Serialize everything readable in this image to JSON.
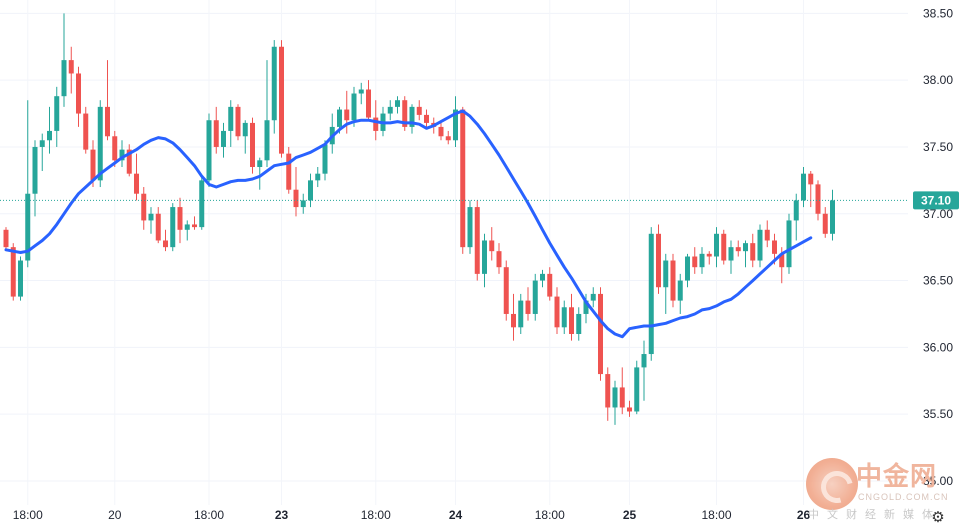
{
  "chart_data": {
    "type": "candlestick",
    "title": "",
    "ylim": [
      34.82,
      38.6
    ],
    "yticks": [
      "35.00",
      "35.50",
      "36.00",
      "36.50",
      "37.00",
      "37.50",
      "38.00",
      "38.50"
    ],
    "current_price": "37.10",
    "current_value": 37.1,
    "x_labels": [
      {
        "text": "18:00",
        "i": 3,
        "bold": false
      },
      {
        "text": "20",
        "i": 15,
        "bold": false
      },
      {
        "text": "18:00",
        "i": 28,
        "bold": false
      },
      {
        "text": "23",
        "i": 38,
        "bold": true
      },
      {
        "text": "18:00",
        "i": 51,
        "bold": false
      },
      {
        "text": "24",
        "i": 62,
        "bold": true
      },
      {
        "text": "18:00",
        "i": 75,
        "bold": false
      },
      {
        "text": "25",
        "i": 86,
        "bold": true
      },
      {
        "text": "18:00",
        "i": 98,
        "bold": false
      },
      {
        "text": "26",
        "i": 110,
        "bold": true
      }
    ],
    "bull_color": "#26a69a",
    "bear_color": "#ef5350",
    "ma_color": "#2962ff",
    "candles": [
      [
        36.88,
        36.9,
        36.72,
        36.75
      ],
      [
        36.75,
        36.78,
        36.35,
        36.38
      ],
      [
        36.38,
        36.68,
        36.35,
        36.65
      ],
      [
        36.65,
        37.85,
        36.6,
        37.15
      ],
      [
        37.15,
        37.55,
        36.98,
        37.5
      ],
      [
        37.5,
        37.6,
        37.32,
        37.55
      ],
      [
        37.55,
        37.8,
        37.45,
        37.62
      ],
      [
        37.62,
        37.95,
        37.5,
        37.88
      ],
      [
        37.88,
        38.5,
        37.8,
        38.15
      ],
      [
        38.15,
        38.25,
        37.9,
        38.05
      ],
      [
        38.05,
        38.1,
        37.65,
        37.75
      ],
      [
        37.75,
        37.8,
        37.45,
        37.48
      ],
      [
        37.48,
        37.55,
        37.2,
        37.25
      ],
      [
        37.25,
        37.85,
        37.2,
        37.8
      ],
      [
        37.8,
        38.15,
        37.55,
        37.58
      ],
      [
        37.58,
        37.62,
        37.35,
        37.4
      ],
      [
        37.4,
        37.55,
        37.35,
        37.48
      ],
      [
        37.48,
        37.52,
        37.28,
        37.3
      ],
      [
        37.3,
        37.45,
        37.1,
        37.15
      ],
      [
        37.15,
        37.2,
        36.88,
        36.95
      ],
      [
        36.95,
        37.05,
        36.85,
        37.0
      ],
      [
        37.0,
        37.05,
        36.78,
        36.8
      ],
      [
        36.8,
        36.88,
        36.72,
        36.75
      ],
      [
        36.75,
        37.08,
        36.72,
        37.05
      ],
      [
        37.05,
        37.12,
        36.78,
        36.88
      ],
      [
        36.88,
        36.95,
        36.8,
        36.92
      ],
      [
        36.92,
        36.98,
        36.88,
        36.9
      ],
      [
        36.9,
        37.28,
        36.88,
        37.25
      ],
      [
        37.25,
        37.75,
        37.2,
        37.7
      ],
      [
        37.7,
        37.8,
        37.45,
        37.5
      ],
      [
        37.5,
        37.68,
        37.42,
        37.62
      ],
      [
        37.62,
        37.85,
        37.5,
        37.8
      ],
      [
        37.8,
        37.82,
        37.55,
        37.58
      ],
      [
        37.58,
        37.7,
        37.45,
        37.68
      ],
      [
        37.68,
        37.72,
        37.3,
        37.35
      ],
      [
        37.35,
        37.42,
        37.18,
        37.4
      ],
      [
        37.4,
        38.15,
        37.35,
        37.7
      ],
      [
        37.7,
        38.3,
        37.6,
        38.25
      ],
      [
        38.25,
        38.3,
        37.42,
        37.45
      ],
      [
        37.45,
        37.5,
        37.15,
        37.18
      ],
      [
        37.18,
        37.35,
        36.98,
        37.05
      ],
      [
        37.05,
        37.15,
        37.0,
        37.1
      ],
      [
        37.1,
        37.3,
        37.05,
        37.25
      ],
      [
        37.25,
        37.35,
        37.2,
        37.3
      ],
      [
        37.3,
        37.55,
        37.25,
        37.52
      ],
      [
        37.52,
        37.75,
        37.45,
        37.65
      ],
      [
        37.65,
        37.8,
        37.6,
        37.78
      ],
      [
        37.78,
        37.92,
        37.6,
        37.7
      ],
      [
        37.7,
        37.95,
        37.65,
        37.9
      ],
      [
        37.9,
        37.98,
        37.82,
        37.93
      ],
      [
        37.93,
        38.0,
        37.7,
        37.72
      ],
      [
        37.72,
        37.85,
        37.55,
        37.62
      ],
      [
        37.62,
        37.8,
        37.58,
        37.75
      ],
      [
        37.75,
        37.85,
        37.7,
        37.8
      ],
      [
        37.8,
        37.88,
        37.75,
        37.85
      ],
      [
        37.85,
        37.88,
        37.62,
        37.65
      ],
      [
        37.65,
        37.82,
        37.6,
        37.8
      ],
      [
        37.8,
        37.85,
        37.7,
        37.74
      ],
      [
        37.74,
        37.78,
        37.65,
        37.68
      ],
      [
        37.68,
        37.72,
        37.6,
        37.65
      ],
      [
        37.65,
        37.7,
        37.55,
        37.58
      ],
      [
        37.58,
        37.62,
        37.52,
        37.55
      ],
      [
        37.55,
        37.88,
        37.5,
        37.78
      ],
      [
        37.78,
        37.8,
        36.7,
        36.75
      ],
      [
        36.75,
        37.1,
        36.7,
        37.05
      ],
      [
        37.05,
        37.1,
        36.5,
        36.55
      ],
      [
        36.55,
        36.85,
        36.45,
        36.8
      ],
      [
        36.8,
        36.9,
        36.65,
        36.72
      ],
      [
        36.72,
        36.78,
        36.55,
        36.6
      ],
      [
        36.6,
        36.65,
        36.2,
        36.25
      ],
      [
        36.25,
        36.4,
        36.05,
        36.15
      ],
      [
        36.15,
        36.4,
        36.1,
        36.35
      ],
      [
        36.35,
        36.45,
        36.2,
        36.25
      ],
      [
        36.25,
        36.55,
        36.2,
        36.5
      ],
      [
        36.5,
        36.58,
        36.45,
        36.55
      ],
      [
        36.55,
        36.6,
        36.35,
        36.38
      ],
      [
        36.38,
        36.45,
        36.1,
        36.15
      ],
      [
        36.15,
        36.35,
        36.1,
        36.3
      ],
      [
        36.3,
        36.4,
        36.05,
        36.1
      ],
      [
        36.1,
        36.3,
        36.05,
        36.25
      ],
      [
        36.25,
        36.4,
        36.18,
        36.35
      ],
      [
        36.35,
        36.45,
        36.3,
        36.4
      ],
      [
        36.4,
        36.45,
        35.75,
        35.8
      ],
      [
        35.8,
        35.85,
        35.45,
        35.55
      ],
      [
        35.55,
        35.75,
        35.42,
        35.7
      ],
      [
        35.7,
        35.85,
        35.5,
        35.55
      ],
      [
        35.55,
        35.6,
        35.48,
        35.52
      ],
      [
        35.52,
        35.9,
        35.5,
        35.85
      ],
      [
        35.85,
        36.05,
        35.6,
        35.95
      ],
      [
        35.95,
        36.9,
        35.9,
        36.85
      ],
      [
        36.85,
        36.92,
        36.4,
        36.45
      ],
      [
        36.45,
        36.7,
        36.25,
        36.65
      ],
      [
        36.65,
        36.7,
        36.3,
        36.35
      ],
      [
        36.35,
        36.55,
        36.25,
        36.5
      ],
      [
        36.5,
        36.7,
        36.45,
        36.68
      ],
      [
        36.68,
        36.75,
        36.55,
        36.6
      ],
      [
        36.6,
        36.75,
        36.55,
        36.7
      ],
      [
        36.7,
        36.72,
        36.62,
        36.68
      ],
      [
        36.68,
        36.9,
        36.6,
        36.85
      ],
      [
        36.85,
        36.88,
        36.62,
        36.65
      ],
      [
        36.65,
        36.8,
        36.55,
        36.75
      ],
      [
        36.75,
        36.8,
        36.68,
        36.72
      ],
      [
        36.72,
        36.8,
        36.6,
        36.78
      ],
      [
        36.78,
        36.85,
        36.6,
        36.65
      ],
      [
        36.65,
        36.92,
        36.6,
        36.88
      ],
      [
        36.88,
        36.95,
        36.75,
        36.8
      ],
      [
        36.8,
        36.85,
        36.62,
        36.7
      ],
      [
        36.7,
        36.75,
        36.48,
        36.6
      ],
      [
        36.6,
        37.0,
        36.55,
        36.95
      ],
      [
        36.95,
        37.15,
        36.8,
        37.1
      ],
      [
        37.1,
        37.35,
        37.05,
        37.3
      ],
      [
        37.3,
        37.32,
        37.05,
        37.22
      ],
      [
        37.22,
        37.25,
        36.95,
        37.0
      ],
      [
        37.0,
        37.05,
        36.82,
        36.85
      ],
      [
        36.85,
        37.18,
        36.8,
        37.1
      ]
    ],
    "ma": [
      36.73,
      36.72,
      36.71,
      36.72,
      36.76,
      36.8,
      36.85,
      36.92,
      37.0,
      37.08,
      37.15,
      37.2,
      37.25,
      37.3,
      37.34,
      37.38,
      37.42,
      37.45,
      37.48,
      37.52,
      37.55,
      37.57,
      37.56,
      37.53,
      37.48,
      37.42,
      37.36,
      37.28,
      37.22,
      37.2,
      37.22,
      37.24,
      37.25,
      37.25,
      37.26,
      37.28,
      37.32,
      37.36,
      37.37,
      37.38,
      37.42,
      37.44,
      37.46,
      37.49,
      37.52,
      37.58,
      37.63,
      37.67,
      37.69,
      37.7,
      37.7,
      37.69,
      37.68,
      37.68,
      37.69,
      37.68,
      37.68,
      37.67,
      37.64,
      37.66,
      37.69,
      37.72,
      37.75,
      37.77,
      37.73,
      37.67,
      37.6,
      37.52,
      37.44,
      37.35,
      37.26,
      37.17,
      37.08,
      36.98,
      36.88,
      36.78,
      36.69,
      36.6,
      36.52,
      36.43,
      36.34,
      36.27,
      36.2,
      36.14,
      36.1,
      36.08,
      36.14,
      36.15,
      36.16,
      36.16,
      36.17,
      36.18,
      36.2,
      36.22,
      36.23,
      36.25,
      36.28,
      36.29,
      36.31,
      36.34,
      36.36,
      36.4,
      36.45,
      36.5,
      36.55,
      36.6,
      36.65,
      36.7,
      36.73,
      36.76,
      36.79,
      36.82
    ]
  },
  "watermark": {
    "title": "中金网",
    "url": "CNGOLD.COM.CN",
    "sub": "中文财经新媒体"
  },
  "settings_icon": "gear-icon"
}
